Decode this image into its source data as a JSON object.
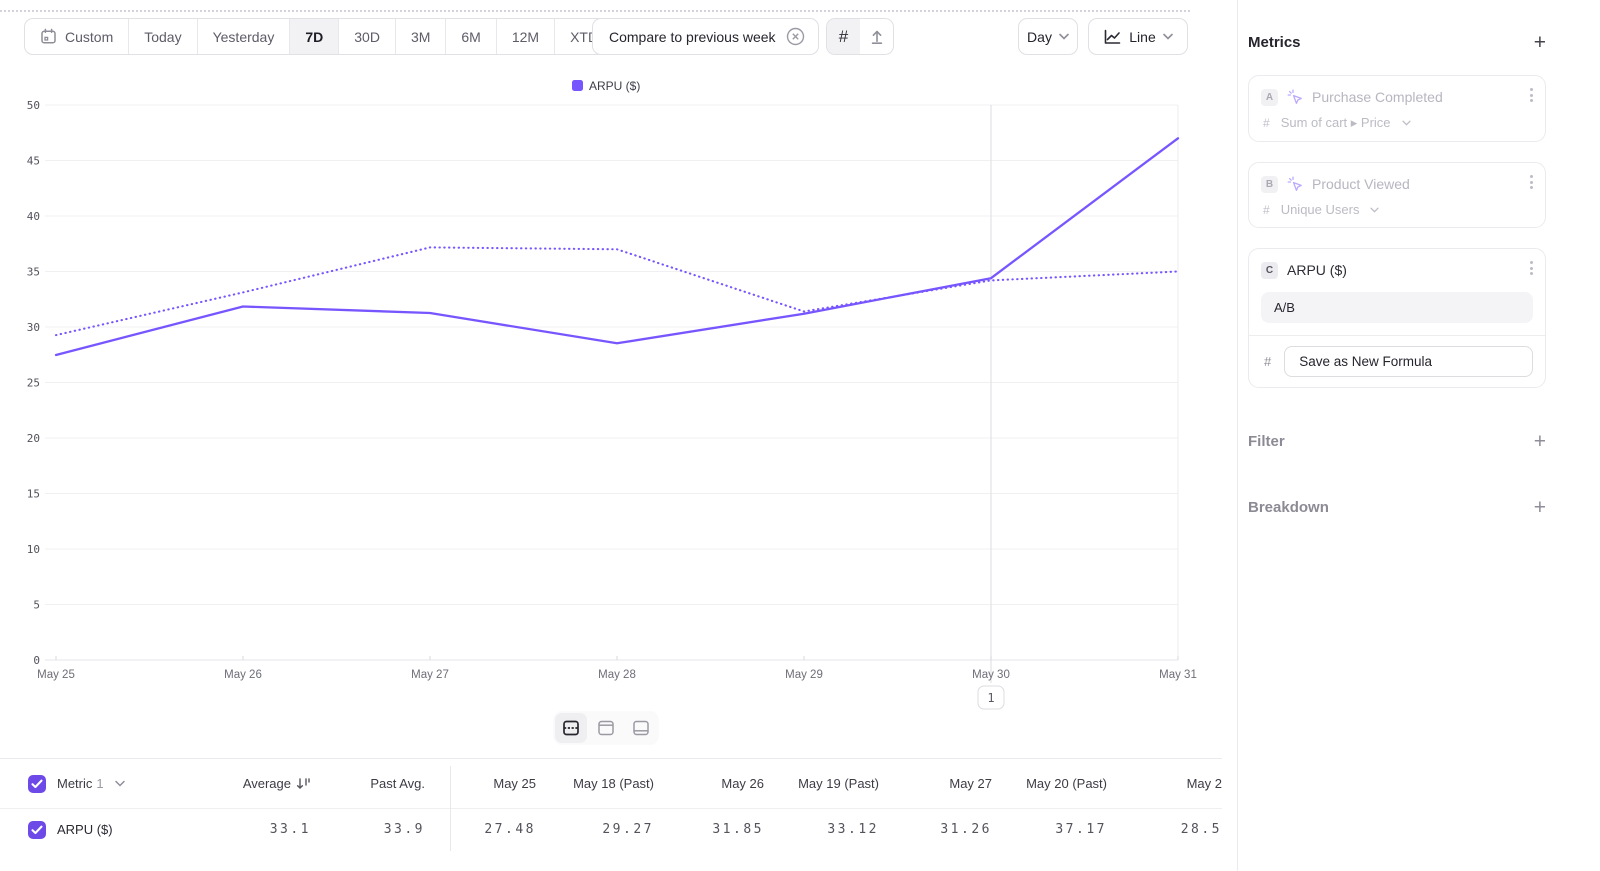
{
  "accent": "#7856ff",
  "checkbox_color": "#6d49e8",
  "toolbar": {
    "date_ranges": [
      "Custom",
      "Today",
      "Yesterday",
      "7D",
      "30D",
      "3M",
      "6M",
      "12M",
      "XTD"
    ],
    "selected_range": "7D",
    "compare_label": "Compare to previous week",
    "day_dropdown": "Day",
    "chart_type": "Line"
  },
  "chart_data": {
    "type": "line",
    "legend": [
      "ARPU ($)"
    ],
    "x_labels": [
      "May 25",
      "May 26",
      "May 27",
      "May 28",
      "May 29",
      "May 30",
      "May 31"
    ],
    "ylim": [
      0,
      50
    ],
    "ytick_step": 5,
    "grid": "horizontal",
    "series": [
      {
        "name": "ARPU ($)",
        "style": "solid",
        "values": [
          27.48,
          31.85,
          31.26,
          28.53,
          31.2,
          34.4,
          47.0
        ]
      },
      {
        "name": "ARPU ($) (Past)",
        "style": "dotted",
        "values": [
          29.27,
          33.12,
          37.17,
          37.0,
          31.4,
          34.2,
          35.0
        ]
      }
    ],
    "annotation": {
      "x_index": 5,
      "label": "1"
    }
  },
  "table": {
    "metric_header": {
      "label": "Metric",
      "count": "1"
    },
    "columns": [
      "Average",
      "Past Avg.",
      "May 25",
      "May 18 (Past)",
      "May 26",
      "May 19 (Past)",
      "May 27",
      "May 20 (Past)",
      "May 2"
    ],
    "rows": [
      {
        "name": "ARPU ($)",
        "values": [
          "33.1",
          "33.9",
          "27.48",
          "29.27",
          "31.85",
          "33.12",
          "31.26",
          "37.17",
          "28.5"
        ]
      }
    ]
  },
  "sidebar": {
    "metrics": {
      "title": "Metrics",
      "items": [
        {
          "badge": "A",
          "name": "Purchase Completed",
          "aggregation": "Sum of cart ▸ Price",
          "disabled": true
        },
        {
          "badge": "B",
          "name": "Product Viewed",
          "aggregation": "Unique Users",
          "disabled": true
        },
        {
          "badge": "C",
          "name": "ARPU ($)",
          "formula": "A/B",
          "action": "Save as New Formula"
        }
      ]
    },
    "filter": {
      "title": "Filter"
    },
    "breakdown": {
      "title": "Breakdown"
    }
  }
}
